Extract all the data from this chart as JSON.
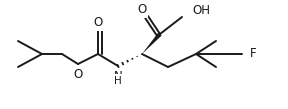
{
  "background_color": "#ffffff",
  "line_color": "#1a1a1a",
  "line_width": 1.4,
  "font_size": 8.5,
  "figsize": [
    2.88,
    1.09
  ],
  "dpi": 100,
  "xlim": [
    0.0,
    1.0
  ],
  "ylim": [
    0.0,
    1.0
  ]
}
